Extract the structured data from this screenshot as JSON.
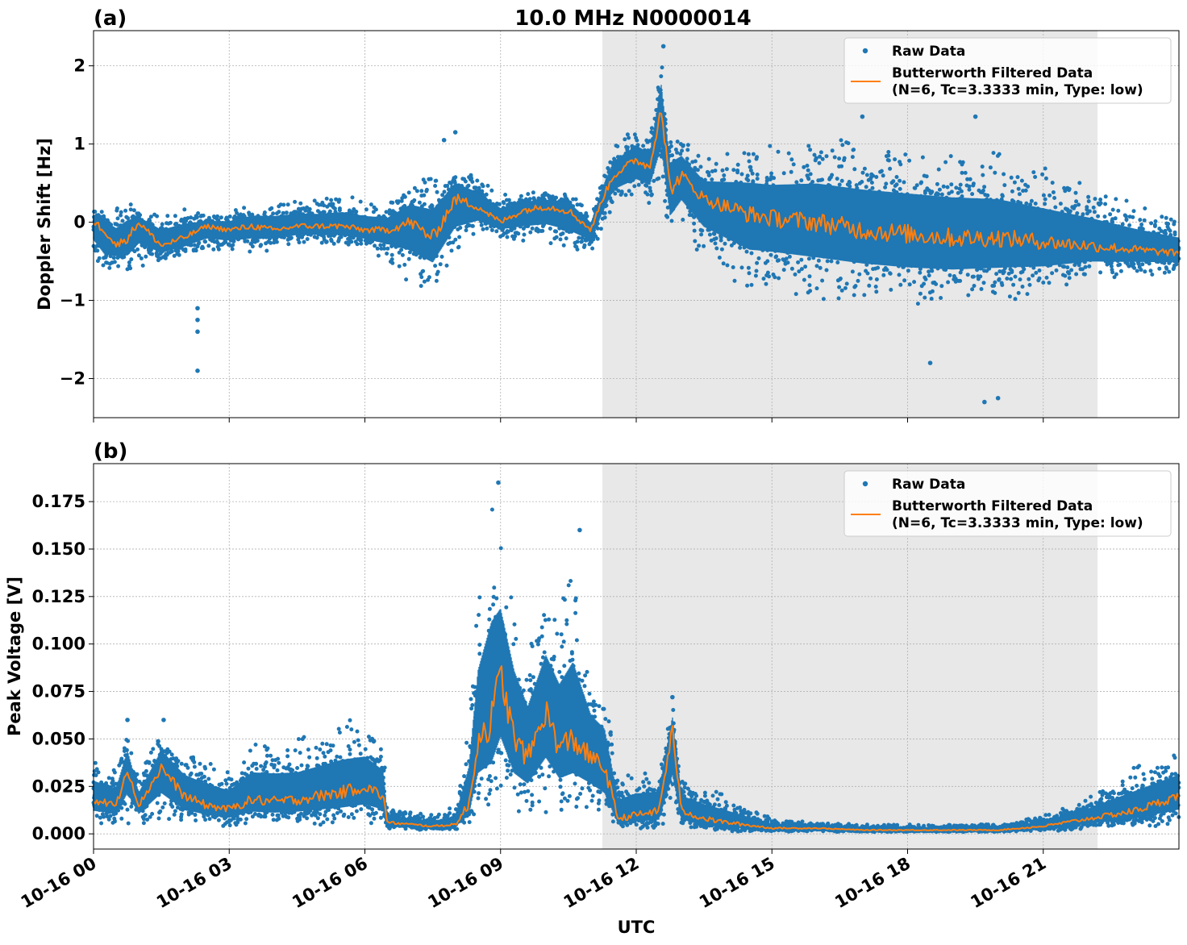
{
  "figure": {
    "title": "10.0 MHz N0000014",
    "xlabel": "UTC",
    "x_ticks": [
      "10-16 00",
      "10-16 03",
      "10-16 06",
      "10-16 09",
      "10-16 12",
      "10-16 15",
      "10-16 18",
      "10-16 21"
    ],
    "shaded_span_hours": [
      11.25,
      22.2
    ],
    "colors": {
      "raw": "#1f77b4",
      "filtered": "#ff7f0e",
      "shade": "#e8e8e8",
      "grid": "#b0b0b0"
    }
  },
  "chart_data": [
    {
      "type": "scatter",
      "panel_label": "(a)",
      "title": "10.0 MHz N0000014",
      "xlabel": "",
      "ylabel": "Doppler Shift [Hz]",
      "xlim_hours": [
        0,
        24
      ],
      "ylim": [
        -2.5,
        2.45
      ],
      "y_ticks": [
        2,
        1,
        0,
        -1,
        -2
      ],
      "y_tick_labels": [
        "2",
        "1",
        "0",
        "−1",
        "−2"
      ],
      "grid": true,
      "legend_position": "top-right",
      "legend": {
        "raw": "Raw Data",
        "filtered_line1": "Butterworth Filtered Data",
        "filtered_line2": "(N=6, Tc=3.3333 min, Type: low)"
      },
      "series": [
        {
          "name": "Raw Data",
          "kind": "scatter-envelope",
          "x_hours": [
            0,
            0.25,
            0.5,
            0.75,
            1,
            1.5,
            2,
            2.5,
            3,
            3.5,
            4,
            4.5,
            5,
            5.5,
            6,
            6.5,
            7,
            7.5,
            8,
            8.5,
            9,
            9.5,
            10,
            10.5,
            11,
            11.25,
            11.5,
            12,
            12.3,
            12.55,
            12.75,
            13,
            13.5,
            14,
            14.5,
            15,
            16,
            17,
            18,
            19,
            20,
            21,
            22,
            23,
            24
          ],
          "upper": [
            0.2,
            0.15,
            0.2,
            0.3,
            0.15,
            0.15,
            0.2,
            0.1,
            0.15,
            0.25,
            0.3,
            0.3,
            0.3,
            0.35,
            0.3,
            0.25,
            0.5,
            0.6,
            0.75,
            0.6,
            0.4,
            0.4,
            0.4,
            0.4,
            0.1,
            0.6,
            1.0,
            1.2,
            1.1,
            2.1,
            1.2,
            1.15,
            0.8,
            0.9,
            1.0,
            1.0,
            1.1,
            1.05,
            1.0,
            0.95,
            0.9,
            0.7,
            0.5,
            0.25,
            0.05
          ],
          "lower": [
            -0.5,
            -0.8,
            -0.6,
            -0.7,
            -0.6,
            -0.5,
            -0.45,
            -0.4,
            -0.4,
            -0.4,
            -0.35,
            -0.3,
            -0.3,
            -0.3,
            -0.35,
            -0.5,
            -0.8,
            -0.9,
            -0.5,
            -0.2,
            -0.2,
            -0.3,
            -0.3,
            -0.4,
            -0.4,
            -0.1,
            0.2,
            0.25,
            0.2,
            0.3,
            -0.3,
            -0.1,
            -0.5,
            -0.7,
            -0.9,
            -0.9,
            -1.0,
            -1.05,
            -1.1,
            -1.1,
            -1.05,
            -0.95,
            -0.75,
            -0.7,
            -0.65
          ]
        },
        {
          "name": "Butterworth Filtered Data",
          "kind": "line",
          "x_hours": [
            0,
            0.25,
            0.5,
            0.75,
            1,
            1.5,
            2,
            2.5,
            3,
            3.5,
            4,
            4.5,
            5,
            5.5,
            6,
            6.5,
            7,
            7.5,
            8,
            8.5,
            9,
            9.5,
            10,
            10.5,
            11,
            11.25,
            11.5,
            12,
            12.3,
            12.55,
            12.75,
            13,
            13.5,
            14,
            14.5,
            15,
            16,
            17,
            18,
            19,
            20,
            21,
            22,
            23,
            24
          ],
          "y": [
            0.0,
            -0.1,
            -0.3,
            -0.2,
            0.0,
            -0.3,
            -0.2,
            -0.05,
            -0.1,
            -0.05,
            -0.1,
            -0.05,
            -0.05,
            -0.05,
            -0.1,
            -0.1,
            0.0,
            -0.2,
            0.3,
            0.2,
            0.0,
            0.15,
            0.2,
            0.15,
            -0.1,
            0.3,
            0.6,
            0.8,
            0.7,
            1.5,
            0.4,
            0.6,
            0.3,
            0.2,
            0.1,
            0.05,
            0.0,
            -0.1,
            -0.15,
            -0.2,
            -0.2,
            -0.25,
            -0.3,
            -0.35,
            -0.4
          ]
        }
      ],
      "isolated_points": [
        {
          "x_hours": 2.3,
          "y": -1.1
        },
        {
          "x_hours": 2.3,
          "y": -1.25
        },
        {
          "x_hours": 2.3,
          "y": -1.4
        },
        {
          "x_hours": 2.3,
          "y": -1.9
        },
        {
          "x_hours": 8.0,
          "y": 1.15
        },
        {
          "x_hours": 7.75,
          "y": 1.05
        },
        {
          "x_hours": 12.6,
          "y": 2.25
        },
        {
          "x_hours": 18.5,
          "y": -1.8
        },
        {
          "x_hours": 19.7,
          "y": -2.3
        },
        {
          "x_hours": 20.0,
          "y": -2.25
        },
        {
          "x_hours": 19.5,
          "y": 1.35
        },
        {
          "x_hours": 17.0,
          "y": 1.35
        }
      ]
    },
    {
      "type": "scatter",
      "panel_label": "(b)",
      "title": "",
      "xlabel": "UTC",
      "ylabel": "Peak Voltage [V]",
      "xlim_hours": [
        0,
        24
      ],
      "ylim": [
        -0.008,
        0.195
      ],
      "y_ticks": [
        0.175,
        0.15,
        0.125,
        0.1,
        0.075,
        0.05,
        0.025,
        0.0
      ],
      "y_tick_labels": [
        "0.175",
        "0.150",
        "0.125",
        "0.100",
        "0.075",
        "0.050",
        "0.025",
        "0.000"
      ],
      "grid": true,
      "legend_position": "top-right",
      "legend": {
        "raw": "Raw Data",
        "filtered_line1": "Butterworth Filtered Data",
        "filtered_line2": "(N=6, Tc=3.3333 min, Type: low)"
      },
      "series": [
        {
          "name": "Raw Data",
          "kind": "scatter-envelope",
          "x_hours": [
            0,
            0.5,
            0.75,
            1,
            1.5,
            2,
            2.5,
            3,
            3.5,
            4,
            4.5,
            5,
            5.5,
            6,
            6.4,
            6.5,
            7,
            7.5,
            8,
            8.3,
            8.5,
            8.8,
            9,
            9.3,
            9.6,
            10,
            10.3,
            10.6,
            11,
            11.3,
            11.6,
            12,
            12.5,
            12.8,
            13,
            13.5,
            14,
            15,
            16,
            17,
            18,
            19,
            20,
            21,
            22,
            23,
            24
          ],
          "upper": [
            0.04,
            0.035,
            0.055,
            0.03,
            0.055,
            0.045,
            0.04,
            0.035,
            0.05,
            0.05,
            0.05,
            0.055,
            0.06,
            0.06,
            0.05,
            0.015,
            0.012,
            0.01,
            0.015,
            0.06,
            0.13,
            0.175,
            0.16,
            0.13,
            0.1,
            0.13,
            0.12,
            0.14,
            0.09,
            0.08,
            0.03,
            0.035,
            0.035,
            0.07,
            0.03,
            0.025,
            0.02,
            0.008,
            0.006,
            0.005,
            0.005,
            0.005,
            0.005,
            0.01,
            0.02,
            0.035,
            0.045
          ],
          "lower": [
            0.005,
            0.005,
            0.005,
            0.005,
            0.005,
            0.004,
            0.004,
            0.003,
            0.004,
            0.004,
            0.004,
            0.004,
            0.004,
            0.004,
            0.004,
            0.002,
            0.002,
            0.002,
            0.002,
            0.005,
            0.01,
            0.01,
            0.01,
            0.01,
            0.01,
            0.01,
            0.01,
            0.01,
            0.01,
            0.005,
            0.002,
            0.002,
            0.002,
            0.002,
            0.002,
            0.001,
            0.001,
            0.001,
            0.001,
            0.001,
            0.001,
            0.001,
            0.001,
            0.001,
            0.002,
            0.003,
            0.004
          ]
        },
        {
          "name": "Butterworth Filtered Data",
          "kind": "line",
          "x_hours": [
            0,
            0.5,
            0.75,
            1,
            1.5,
            2,
            2.5,
            3,
            3.5,
            4,
            4.5,
            5,
            5.5,
            6,
            6.4,
            6.5,
            7,
            7.5,
            8,
            8.3,
            8.5,
            8.8,
            9,
            9.3,
            9.6,
            10,
            10.3,
            10.6,
            11,
            11.3,
            11.6,
            12,
            12.5,
            12.8,
            13,
            13.5,
            14,
            15,
            16,
            17,
            18,
            19,
            20,
            21,
            22,
            23,
            24
          ],
          "y": [
            0.018,
            0.015,
            0.035,
            0.015,
            0.035,
            0.02,
            0.015,
            0.013,
            0.018,
            0.017,
            0.018,
            0.02,
            0.022,
            0.025,
            0.02,
            0.006,
            0.005,
            0.004,
            0.005,
            0.015,
            0.05,
            0.06,
            0.085,
            0.05,
            0.04,
            0.065,
            0.045,
            0.05,
            0.04,
            0.035,
            0.008,
            0.01,
            0.012,
            0.055,
            0.012,
            0.008,
            0.006,
            0.003,
            0.003,
            0.002,
            0.002,
            0.002,
            0.002,
            0.004,
            0.008,
            0.012,
            0.02
          ]
        }
      ],
      "isolated_points": [
        {
          "x_hours": 8.95,
          "y": 0.185
        },
        {
          "x_hours": 10.75,
          "y": 0.16
        },
        {
          "x_hours": 12.8,
          "y": 0.072
        },
        {
          "x_hours": 0.75,
          "y": 0.06
        },
        {
          "x_hours": 1.55,
          "y": 0.06
        }
      ]
    }
  ]
}
